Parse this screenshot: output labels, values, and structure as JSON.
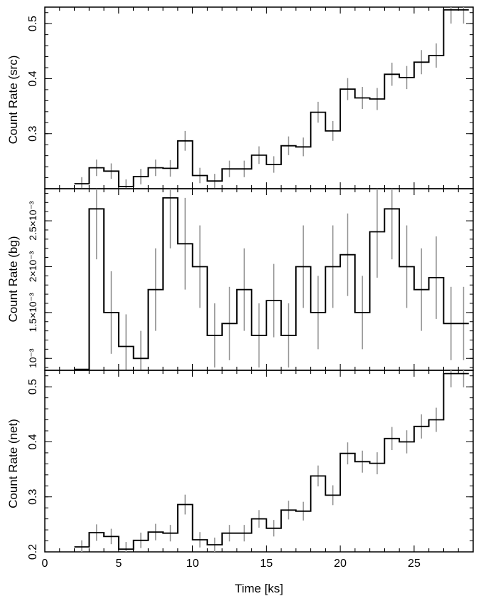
{
  "chart_data": [
    {
      "type": "line",
      "step": true,
      "panel": "src",
      "ylabel": "Count Rate (src)",
      "xlabel": "",
      "xlim": [
        0,
        29
      ],
      "ylim": [
        0.2,
        0.53
      ],
      "yticks": [
        {
          "v": 0.3,
          "label": "0.3"
        },
        {
          "v": 0.4,
          "label": "0.4"
        },
        {
          "v": 0.5,
          "label": "0.5"
        }
      ],
      "bin_edges": [
        2.0,
        3.0,
        4.0,
        5.0,
        6.0,
        7.0,
        8.0,
        9.0,
        10.0,
        11.0,
        12.0,
        13.0,
        14.0,
        15.0,
        16.0,
        17.0,
        18.0,
        19.0,
        20.0,
        21.0,
        22.0,
        23.0,
        24.0,
        25.0,
        26.0,
        27.0,
        28.0,
        28.7
      ],
      "series": [
        {
          "values": [
            0.209,
            0.238,
            0.232,
            0.204,
            0.222,
            0.238,
            0.237,
            0.287,
            0.224,
            0.214,
            0.236,
            0.236,
            0.261,
            0.244,
            0.278,
            0.276,
            0.339,
            0.305,
            0.381,
            0.365,
            0.363,
            0.408,
            0.402,
            0.43,
            0.442,
            0.525,
            0.525
          ],
          "errors": [
            0.012,
            0.015,
            0.014,
            0.013,
            0.014,
            0.015,
            0.015,
            0.018,
            0.014,
            0.013,
            0.015,
            0.015,
            0.016,
            0.015,
            0.017,
            0.017,
            0.019,
            0.018,
            0.02,
            0.02,
            0.02,
            0.021,
            0.021,
            0.022,
            0.022,
            0.025,
            0.025
          ]
        }
      ]
    },
    {
      "type": "line",
      "step": true,
      "panel": "bg",
      "ylabel": "Count Rate (bg)",
      "xlabel": "",
      "xlim": [
        0,
        29
      ],
      "ylim": [
        0.00087,
        0.00285
      ],
      "yticks": [
        {
          "v": 0.001,
          "label": "10⁻³"
        },
        {
          "v": 0.0015,
          "label": "1.5×10⁻³"
        },
        {
          "v": 0.002,
          "label": "2×10⁻³"
        },
        {
          "v": 0.0025,
          "label": "2.5×10⁻³"
        }
      ],
      "bin_edges": [
        2.0,
        3.0,
        4.0,
        5.0,
        6.0,
        7.0,
        8.0,
        9.0,
        10.0,
        11.0,
        12.0,
        13.0,
        14.0,
        15.0,
        16.0,
        17.0,
        18.0,
        19.0,
        20.0,
        21.0,
        22.0,
        23.0,
        24.0,
        25.0,
        26.0,
        27.0,
        28.0,
        28.7
      ],
      "series": [
        {
          "values": [
            0.00088,
            0.00263,
            0.0015,
            0.00113,
            0.001,
            0.00175,
            0.00275,
            0.00225,
            0.002,
            0.00125,
            0.00138,
            0.00175,
            0.00125,
            0.00163,
            0.00125,
            0.002,
            0.0015,
            0.002,
            0.00213,
            0.0015,
            0.00238,
            0.00263,
            0.002,
            0.00175,
            0.00188,
            0.00138,
            0.00138
          ],
          "errors": [
            0.0,
            0.00055,
            0.00045,
            0.00035,
            0.0003,
            0.00045,
            0.00055,
            0.0005,
            0.00045,
            0.00035,
            0.0004,
            0.00045,
            0.00035,
            0.0004,
            0.00035,
            0.00045,
            0.0004,
            0.00045,
            0.00045,
            0.0004,
            0.0005,
            0.00055,
            0.00045,
            0.00045,
            0.00045,
            0.0004,
            0.0004
          ]
        }
      ]
    },
    {
      "type": "line",
      "step": true,
      "panel": "net",
      "ylabel": "Count Rate (net)",
      "xlabel": "Time [ks]",
      "xlim": [
        0,
        29
      ],
      "ylim": [
        0.2,
        0.53
      ],
      "yticks": [
        {
          "v": 0.2,
          "label": "0.2"
        },
        {
          "v": 0.3,
          "label": "0.3"
        },
        {
          "v": 0.4,
          "label": "0.4"
        },
        {
          "v": 0.5,
          "label": "0.5"
        }
      ],
      "xticks": [
        {
          "v": 0,
          "label": "0"
        },
        {
          "v": 5,
          "label": "5"
        },
        {
          "v": 10,
          "label": "10"
        },
        {
          "v": 15,
          "label": "15"
        },
        {
          "v": 20,
          "label": "20"
        },
        {
          "v": 25,
          "label": "25"
        }
      ],
      "bin_edges": [
        2.0,
        3.0,
        4.0,
        5.0,
        6.0,
        7.0,
        8.0,
        9.0,
        10.0,
        11.0,
        12.0,
        13.0,
        14.0,
        15.0,
        16.0,
        17.0,
        18.0,
        19.0,
        20.0,
        21.0,
        22.0,
        23.0,
        24.0,
        25.0,
        26.0,
        27.0,
        28.0,
        28.7
      ],
      "series": [
        {
          "values": [
            0.209,
            0.235,
            0.228,
            0.205,
            0.221,
            0.236,
            0.234,
            0.286,
            0.222,
            0.213,
            0.234,
            0.234,
            0.26,
            0.243,
            0.276,
            0.274,
            0.338,
            0.303,
            0.379,
            0.364,
            0.361,
            0.406,
            0.4,
            0.428,
            0.44,
            0.524,
            0.524
          ],
          "errors": [
            0.012,
            0.015,
            0.014,
            0.013,
            0.014,
            0.015,
            0.015,
            0.018,
            0.014,
            0.013,
            0.015,
            0.015,
            0.016,
            0.015,
            0.017,
            0.017,
            0.019,
            0.018,
            0.02,
            0.02,
            0.02,
            0.021,
            0.021,
            0.022,
            0.022,
            0.025,
            0.025
          ]
        }
      ]
    }
  ],
  "colors": {
    "step_line": "#000000",
    "error_bar": "#999999",
    "axis": "#000000"
  }
}
